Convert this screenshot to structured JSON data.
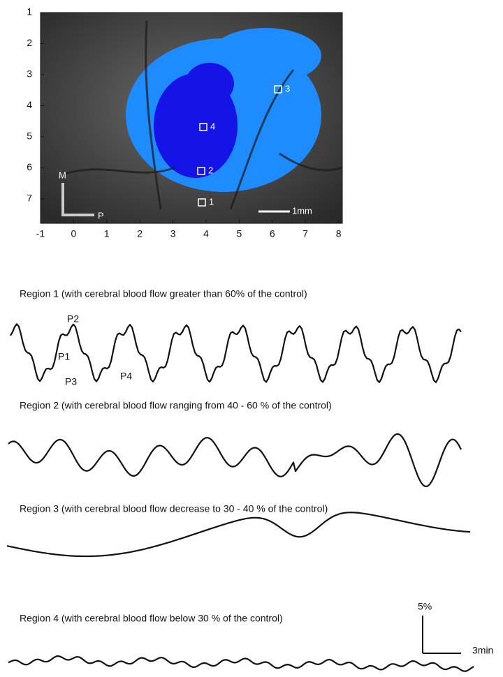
{
  "image_panel": {
    "yticks": [
      1,
      2,
      3,
      4,
      5,
      6,
      7
    ],
    "xticks": [
      -1,
      0,
      1,
      2,
      3,
      4,
      5,
      6,
      7,
      8
    ],
    "orientation": {
      "medial": "M",
      "posterior": "P"
    },
    "scale_bar": "1mm",
    "regions": [
      {
        "label": "1"
      },
      {
        "label": "2"
      },
      {
        "label": "3"
      },
      {
        "label": "4"
      }
    ]
  },
  "traces": [
    {
      "title": "Region  1 (with cerebral blood flow greater than 60% of the control)",
      "peaks": [
        "P1",
        "P2",
        "P3",
        "P4"
      ]
    },
    {
      "title": "Region  2 (with cerebral blood flow ranging from 40 - 60 % of the control)"
    },
    {
      "title": "Region 3 (with cerebral blood flow decrease to 30 - 40 % of the control)"
    },
    {
      "title": "Region  4 (with cerebral blood flow below 30 % of the control)"
    }
  ],
  "scale": {
    "vertical": "5%",
    "horizontal": "3min"
  }
}
